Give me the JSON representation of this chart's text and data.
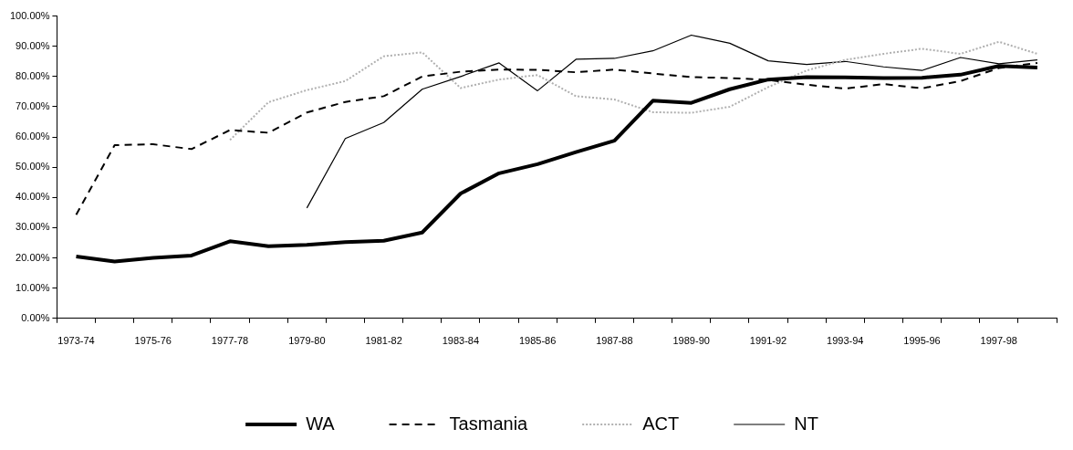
{
  "chart_data": {
    "type": "line",
    "categories": [
      "1973-74",
      null,
      "1975-76",
      null,
      "1977-78",
      null,
      "1979-80",
      null,
      "1981-82",
      null,
      "1983-84",
      null,
      "1985-86",
      null,
      "1987-88",
      null,
      "1989-90",
      null,
      "1991-92",
      null,
      "1993-94",
      null,
      "1995-96",
      null,
      "1997-98",
      null
    ],
    "series": [
      {
        "name": "WA",
        "color": "#000000",
        "line_style": "solid",
        "values": [
          20.5,
          18.8,
          20,
          20.8,
          25.5,
          23.9,
          24.3,
          25.2,
          25.7,
          28.4,
          41.3,
          48,
          51,
          55,
          58.8,
          72,
          71.3,
          75.8,
          79,
          79.8,
          79.7,
          79.5,
          79.6,
          80.6,
          83.5,
          83
        ]
      },
      {
        "name": "Tasmania",
        "color": "#000000",
        "line_style": "dashed",
        "values": [
          34.3,
          57.3,
          57.6,
          56,
          62.3,
          61.4,
          68.1,
          71.6,
          73.5,
          80,
          81.6,
          82.3,
          82.2,
          81.4,
          82.3,
          81,
          79.8,
          79.5,
          78.9,
          77.3,
          76,
          77.5,
          76.1,
          78.5,
          82.8,
          84.5
        ]
      },
      {
        "name": "ACT",
        "color": "#b0b0b0",
        "line_style": "dotted",
        "values": [
          null,
          null,
          null,
          null,
          59,
          71.5,
          75.5,
          78.5,
          86.7,
          88,
          76.2,
          79,
          80.5,
          73.5,
          72.4,
          68.2,
          68,
          70,
          76.5,
          82,
          85.5,
          87.5,
          89.2,
          87.5,
          91.5,
          87.5
        ]
      },
      {
        "name": "NT",
        "color": "#000000",
        "line_style": "solid",
        "values": [
          null,
          null,
          null,
          null,
          null,
          null,
          36.5,
          59.5,
          64.8,
          75.8,
          80,
          84.5,
          75.3,
          85.7,
          86,
          88.5,
          93.7,
          91,
          85.2,
          84,
          85,
          83.2,
          82,
          86.3,
          84.2,
          85.5
        ]
      }
    ],
    "ylim": [
      0,
      100
    ],
    "yticks": [
      {
        "value": 0,
        "label": "0.00%"
      },
      {
        "value": 10,
        "label": "10.00%"
      },
      {
        "value": 20,
        "label": "20.00%"
      },
      {
        "value": 30,
        "label": "30.00%"
      },
      {
        "value": 40,
        "label": "40.00%"
      },
      {
        "value": 50,
        "label": "50.00%"
      },
      {
        "value": 60,
        "label": "60.00%"
      },
      {
        "value": 70,
        "label": "70.00%"
      },
      {
        "value": 80,
        "label": "80.00%"
      },
      {
        "value": 90,
        "label": "90.00%"
      },
      {
        "value": 100,
        "label": "100.00%"
      }
    ],
    "grid": false,
    "legend": "bottom",
    "marker": "none"
  }
}
